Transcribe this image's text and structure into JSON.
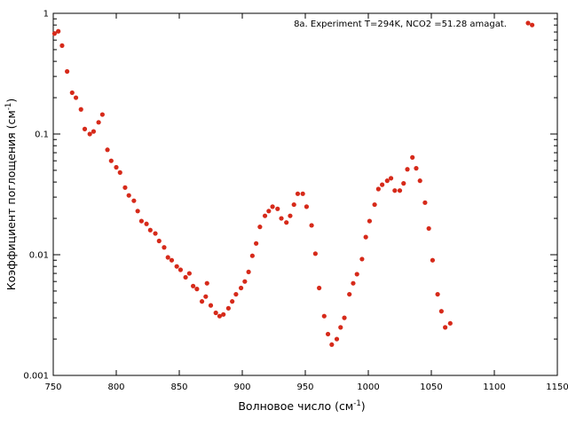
{
  "chart_data": {
    "type": "scatter",
    "x_axis": {
      "label_main": "Волновое число (см",
      "label_sup": "-1",
      "label_tail": ")",
      "range": [
        750,
        1150
      ],
      "ticks": [
        750,
        800,
        850,
        900,
        950,
        1000,
        1050,
        1100,
        1150
      ],
      "tick_labels": [
        "750",
        "800",
        "850",
        "900",
        "950",
        "1000",
        "1050",
        "1100",
        "1150"
      ]
    },
    "y_axis": {
      "label_main": "Коэффициент поглощения (см",
      "label_sup": "-1",
      "label_tail": ")",
      "scale": "log",
      "range": [
        0.001,
        1
      ],
      "ticks": [
        0.001,
        0.01,
        0.1,
        1
      ],
      "tick_labels": [
        "0.001",
        "0.01",
        "0.1",
        "1"
      ]
    },
    "grid": false,
    "legend_position": "top-right",
    "series": [
      {
        "name": "8a. Experiment T=294K, NCO2 =51.28 amagat.",
        "color": "#d62a1a",
        "points": [
          [
            751,
            0.68
          ],
          [
            754,
            0.71
          ],
          [
            757,
            0.54
          ],
          [
            761,
            0.33
          ],
          [
            765,
            0.22
          ],
          [
            768,
            0.2
          ],
          [
            772,
            0.16
          ],
          [
            775,
            0.11
          ],
          [
            779,
            0.1
          ],
          [
            782,
            0.105
          ],
          [
            786,
            0.125
          ],
          [
            789,
            0.145
          ],
          [
            793,
            0.074
          ],
          [
            796,
            0.06
          ],
          [
            800,
            0.053
          ],
          [
            803,
            0.048
          ],
          [
            807,
            0.036
          ],
          [
            810,
            0.031
          ],
          [
            814,
            0.028
          ],
          [
            817,
            0.023
          ],
          [
            820,
            0.019
          ],
          [
            824,
            0.018
          ],
          [
            827,
            0.016
          ],
          [
            831,
            0.015
          ],
          [
            834,
            0.013
          ],
          [
            838,
            0.0115
          ],
          [
            841,
            0.0095
          ],
          [
            844,
            0.009
          ],
          [
            848,
            0.008
          ],
          [
            851,
            0.0075
          ],
          [
            855,
            0.0065
          ],
          [
            858,
            0.007
          ],
          [
            861,
            0.0055
          ],
          [
            864,
            0.0052
          ],
          [
            868,
            0.0041
          ],
          [
            871,
            0.0045
          ],
          [
            872,
            0.0058
          ],
          [
            875,
            0.0038
          ],
          [
            879,
            0.0033
          ],
          [
            882,
            0.0031
          ],
          [
            885,
            0.0032
          ],
          [
            889,
            0.0036
          ],
          [
            892,
            0.0041
          ],
          [
            895,
            0.0047
          ],
          [
            899,
            0.0053
          ],
          [
            902,
            0.006
          ],
          [
            905,
            0.0072
          ],
          [
            908,
            0.0098
          ],
          [
            911,
            0.0124
          ],
          [
            914,
            0.017
          ],
          [
            918,
            0.021
          ],
          [
            921,
            0.023
          ],
          [
            924,
            0.025
          ],
          [
            928,
            0.024
          ],
          [
            931,
            0.02
          ],
          [
            935,
            0.0185
          ],
          [
            938,
            0.021
          ],
          [
            941,
            0.026
          ],
          [
            944,
            0.032
          ],
          [
            948,
            0.032
          ],
          [
            951,
            0.025
          ],
          [
            955,
            0.0175
          ],
          [
            958,
            0.0102
          ],
          [
            961,
            0.0053
          ],
          [
            965,
            0.0031
          ],
          [
            968,
            0.0022
          ],
          [
            971,
            0.0018
          ],
          [
            975,
            0.002
          ],
          [
            978,
            0.0025
          ],
          [
            981,
            0.003
          ],
          [
            985,
            0.0047
          ],
          [
            988,
            0.0058
          ],
          [
            991,
            0.0069
          ],
          [
            995,
            0.0092
          ],
          [
            998,
            0.014
          ],
          [
            1001,
            0.019
          ],
          [
            1005,
            0.026
          ],
          [
            1008,
            0.035
          ],
          [
            1011,
            0.038
          ],
          [
            1015,
            0.041
          ],
          [
            1018,
            0.043
          ],
          [
            1021,
            0.034
          ],
          [
            1025,
            0.034
          ],
          [
            1028,
            0.039
          ],
          [
            1031,
            0.051
          ],
          [
            1035,
            0.064
          ],
          [
            1038,
            0.052
          ],
          [
            1041,
            0.041
          ],
          [
            1045,
            0.027
          ],
          [
            1048,
            0.0165
          ],
          [
            1051,
            0.009
          ],
          [
            1055,
            0.0047
          ],
          [
            1058,
            0.0034
          ],
          [
            1061,
            0.0025
          ],
          [
            1065,
            0.0027
          ],
          [
            1130,
            0.8
          ]
        ]
      }
    ]
  }
}
